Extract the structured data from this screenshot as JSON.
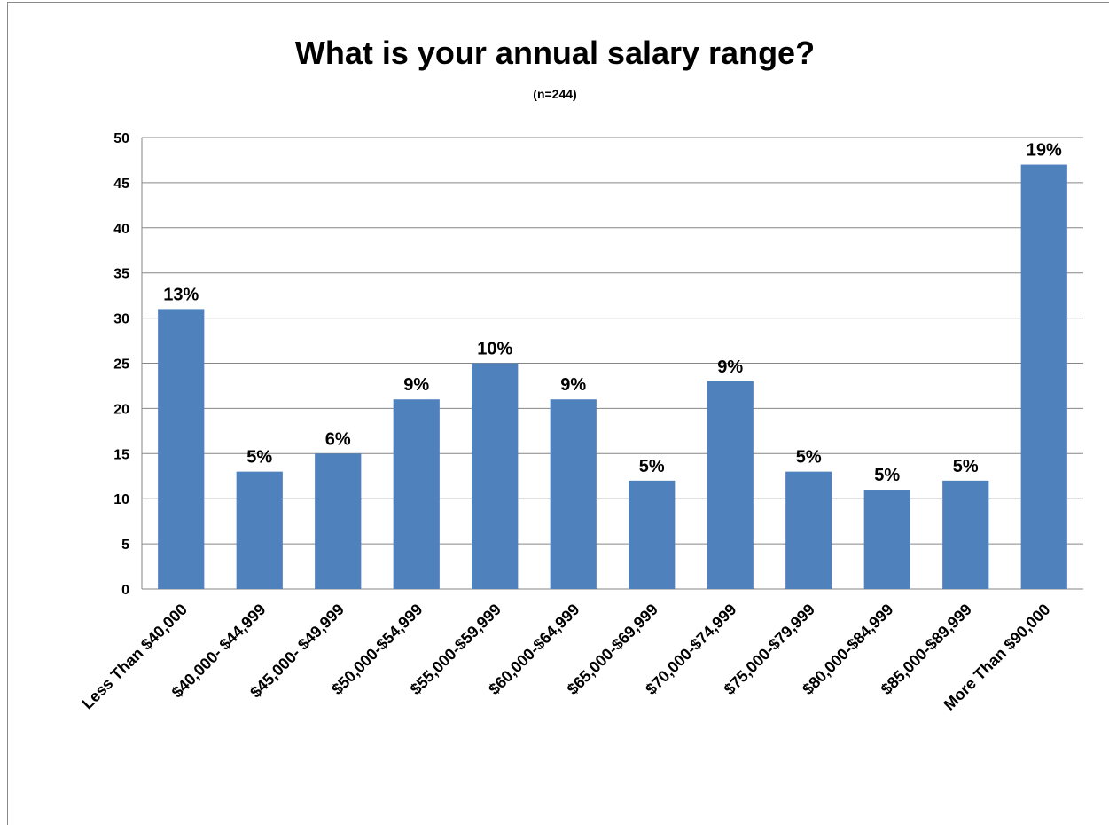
{
  "chart_data": {
    "type": "bar",
    "title": "What is your annual salary range?",
    "subtitle": "(n=244)",
    "categories": [
      "Less Than $40,000",
      "$40,000- $44,999",
      "$45,000- $49,999",
      "$50,000-$54,999",
      "$55,000-$59,999",
      "$60,000-$64,999",
      "$65,000-$69,999",
      "$70,000-$74,999",
      "$75,000-$79,999",
      "$80,000-$84,999",
      "$85,000-$89,999",
      "More Than $90,000"
    ],
    "values": [
      31,
      13,
      15,
      21,
      25,
      21,
      12,
      23,
      13,
      11,
      12,
      47
    ],
    "value_labels": [
      "13%",
      "5%",
      "6%",
      "9%",
      "10%",
      "9%",
      "5%",
      "9%",
      "5%",
      "5%",
      "5%",
      "19%"
    ],
    "color": "#4f81bd",
    "ylim": [
      0,
      50
    ],
    "yticks": [
      0,
      5,
      10,
      15,
      20,
      25,
      30,
      35,
      40,
      45,
      50
    ],
    "grid": true
  }
}
